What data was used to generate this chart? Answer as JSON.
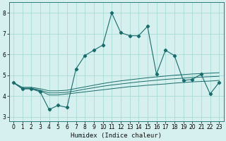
{
  "xlabel": "Humidex (Indice chaleur)",
  "bg_color": "#d5f0ee",
  "line_color": "#1a6b6b",
  "grid_color": "#a0d8d0",
  "xlim": [
    -0.5,
    23.5
  ],
  "ylim": [
    2.8,
    8.5
  ],
  "yticks": [
    3,
    4,
    5,
    6,
    7,
    8
  ],
  "xticks": [
    0,
    1,
    2,
    3,
    4,
    5,
    6,
    7,
    8,
    9,
    10,
    11,
    12,
    13,
    14,
    15,
    16,
    17,
    18,
    19,
    20,
    21,
    22,
    23
  ],
  "main_line_x": [
    0,
    1,
    2,
    3,
    4,
    5,
    6,
    7,
    8,
    9,
    10,
    11,
    12,
    13,
    14,
    15,
    16,
    17,
    18,
    19,
    20,
    21,
    22,
    23
  ],
  "main_line_y": [
    4.65,
    4.35,
    4.35,
    4.2,
    3.35,
    3.55,
    3.45,
    5.3,
    5.95,
    6.2,
    6.45,
    8.0,
    7.05,
    6.9,
    6.9,
    7.35,
    5.05,
    6.2,
    5.95,
    4.75,
    4.8,
    5.05,
    4.1,
    4.65
  ],
  "band_lines": [
    [
      4.65,
      4.35,
      4.35,
      4.25,
      4.05,
      4.05,
      4.1,
      4.15,
      4.2,
      4.25,
      4.3,
      4.35,
      4.4,
      4.45,
      4.48,
      4.52,
      4.55,
      4.58,
      4.62,
      4.65,
      4.68,
      4.7,
      4.72,
      4.75
    ],
    [
      4.65,
      4.38,
      4.38,
      4.28,
      4.15,
      4.15,
      4.18,
      4.25,
      4.33,
      4.4,
      4.47,
      4.53,
      4.58,
      4.63,
      4.68,
      4.72,
      4.76,
      4.8,
      4.83,
      4.86,
      4.89,
      4.91,
      4.93,
      4.95
    ],
    [
      4.65,
      4.42,
      4.42,
      4.35,
      4.25,
      4.25,
      4.28,
      4.36,
      4.44,
      4.52,
      4.6,
      4.67,
      4.73,
      4.78,
      4.83,
      4.88,
      4.92,
      4.96,
      5.0,
      5.03,
      5.06,
      5.08,
      5.1,
      5.12
    ]
  ]
}
